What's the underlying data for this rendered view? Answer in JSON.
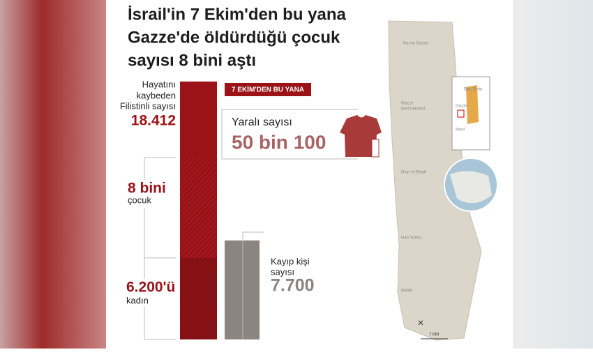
{
  "header": {
    "title": [
      "İsrail'in 7 Ekim'den bu yana",
      "Gazze'de öldürdüğü çocuk",
      "sayısı 8 bini aştı"
    ]
  },
  "tag": "7 EKİM'DEN BU YANA",
  "killed": {
    "label": [
      "Hayatını",
      "kaybeden",
      "Filistinli sayısı"
    ],
    "value": "18.412"
  },
  "children": {
    "value": "8 bini",
    "label": "çocuk"
  },
  "women": {
    "value": "6.200'ü",
    "label": "kadın"
  },
  "injured": {
    "label": "Yaralı sayısı",
    "value": "50 bin 100"
  },
  "missing": {
    "label": [
      "Kayıp kişi",
      "sayısı"
    ],
    "value": "7.700"
  },
  "map": {
    "places": [
      [
        "Kuzey Gazze"
      ],
      [
        "Gazze",
        "kent merkezi"
      ],
      [
        "Deyr el-Belah"
      ],
      [
        "Han Yunus"
      ],
      [
        "Refah"
      ]
    ],
    "inset": [
      "Batı Şeria",
      "Gazze",
      "Mısır"
    ],
    "scale": "7 KM"
  }
}
